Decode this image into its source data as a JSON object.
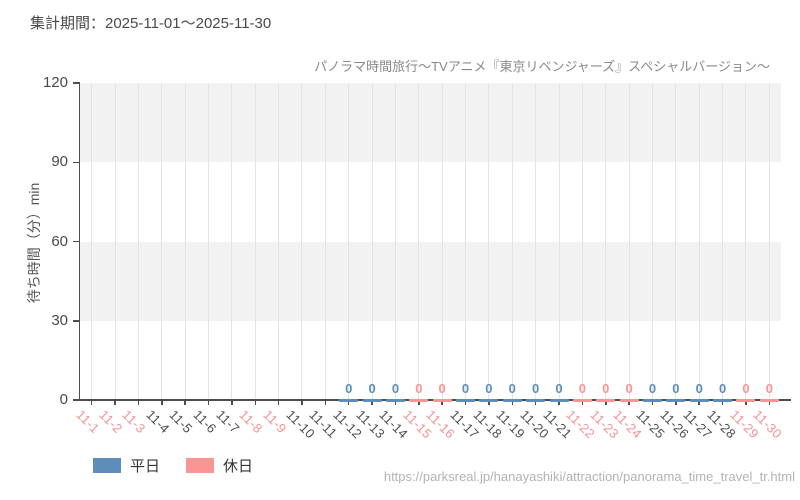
{
  "header": {
    "period_label": "集計期間：2025-11-01～2025-11-30"
  },
  "chart_data": {
    "type": "scatter",
    "title": "パノラマ時間旅行～TVアニメ『東京リベンジャーズ』スペシャルバージョン～",
    "xlabel": "",
    "ylabel": "待ち時間（分）min",
    "ylim": [
      0,
      120
    ],
    "yticks": [
      0,
      30,
      60,
      90,
      120
    ],
    "categories": [
      "11-1",
      "11-2",
      "11-3",
      "11-4",
      "11-5",
      "11-6",
      "11-7",
      "11-8",
      "11-9",
      "11-10",
      "11-11",
      "11-12",
      "11-13",
      "11-14",
      "11-15",
      "11-16",
      "11-17",
      "11-18",
      "11-19",
      "11-20",
      "11-21",
      "11-22",
      "11-23",
      "11-24",
      "11-25",
      "11-26",
      "11-27",
      "11-28",
      "11-29",
      "11-30"
    ],
    "holiday_categories": [
      "11-1",
      "11-2",
      "11-3",
      "11-8",
      "11-9",
      "11-15",
      "11-16",
      "11-22",
      "11-23",
      "11-24",
      "11-29",
      "11-30"
    ],
    "series": [
      {
        "name": "平日",
        "color": "#5f8db9",
        "x": [
          "11-12",
          "11-13",
          "11-14",
          "11-17",
          "11-18",
          "11-19",
          "11-20",
          "11-21",
          "11-25",
          "11-26",
          "11-27",
          "11-28"
        ],
        "y": [
          0,
          0,
          0,
          0,
          0,
          0,
          0,
          0,
          0,
          0,
          0,
          0
        ]
      },
      {
        "name": "休日",
        "color": "#f99694",
        "x": [
          "11-15",
          "11-16",
          "11-22",
          "11-23",
          "11-24",
          "11-29",
          "11-30"
        ],
        "y": [
          0,
          0,
          0,
          0,
          0,
          0,
          0
        ]
      }
    ],
    "marker_style": "horizontal-dash",
    "show_point_labels": true,
    "legend_position": "bottom-left",
    "grid": {
      "vertical_gridlines": true,
      "alternating_horizontal_bands": true
    }
  },
  "footer": {
    "url": "https://parksreal.jp/hanayashiki/attraction/panorama_time_travel_tr.html"
  },
  "colors": {
    "weekday_tick_label": "#4d4d4d",
    "holiday_tick_label": "#f59193",
    "axis": "#4d4d4d",
    "band": "#f2f2f2",
    "gridline": "#e4e4e4",
    "title_text": "#8a8a8a",
    "period_text": "#4a4a4a",
    "ytick_text": "#4a4a4a",
    "ylabel_text": "#555555",
    "legend_text": "#333333",
    "url_text": "#b3b3b3"
  }
}
